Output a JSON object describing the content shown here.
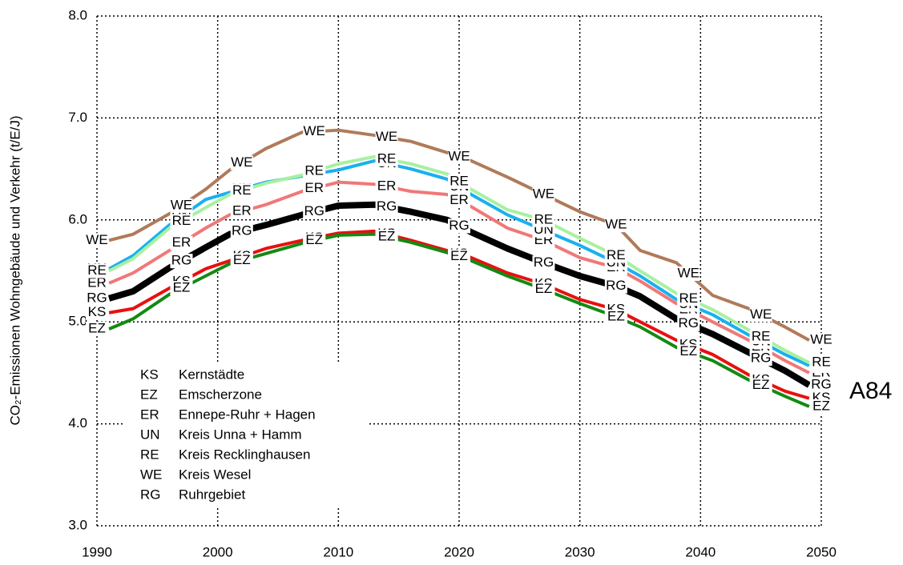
{
  "chart_data": {
    "type": "line",
    "ylabel": "CO₂-Emissionen Wohngebäude und Verkehr (t/E/J)",
    "annotation": "A84",
    "x": [
      1991,
      1993,
      1996,
      1999,
      2001,
      2004,
      2007,
      2010,
      2013,
      2016,
      2019,
      2021,
      2024,
      2027,
      2030,
      2033,
      2035,
      2038,
      2041,
      2044,
      2047,
      2049
    ],
    "series": [
      {
        "name": "KS",
        "full_name": "Kernstädte",
        "color": "#e81010",
        "line_width": 4,
        "values": [
          5.09,
          5.13,
          5.33,
          5.52,
          5.6,
          5.72,
          5.8,
          5.87,
          5.89,
          5.8,
          5.7,
          5.63,
          5.48,
          5.37,
          5.22,
          5.12,
          5.0,
          4.82,
          4.68,
          4.48,
          4.32,
          4.25
        ]
      },
      {
        "name": "EZ",
        "full_name": "Emscherzone",
        "color": "#138a13",
        "line_width": 4,
        "values": [
          4.93,
          5.03,
          5.27,
          5.45,
          5.57,
          5.67,
          5.77,
          5.85,
          5.86,
          5.78,
          5.68,
          5.6,
          5.45,
          5.32,
          5.18,
          5.05,
          4.95,
          4.75,
          4.62,
          4.43,
          4.27,
          4.17
        ]
      },
      {
        "name": "ER",
        "full_name": "Ennepe-Ruhr + Hagen",
        "color": "#f07878",
        "line_width": 4,
        "values": [
          5.38,
          5.48,
          5.7,
          5.92,
          6.05,
          6.15,
          6.28,
          6.37,
          6.35,
          6.28,
          6.25,
          6.13,
          5.92,
          5.8,
          5.63,
          5.53,
          5.4,
          5.18,
          5.0,
          4.82,
          4.62,
          4.5
        ]
      },
      {
        "name": "UN",
        "full_name": "Kreis Unna + Hamm",
        "color": "#1ab0f0",
        "line_width": 4,
        "values": [
          5.52,
          5.65,
          5.95,
          6.2,
          6.27,
          6.37,
          6.43,
          6.49,
          6.58,
          6.5,
          6.4,
          6.25,
          6.05,
          5.9,
          5.75,
          5.58,
          5.45,
          5.22,
          5.07,
          4.87,
          4.68,
          4.57
        ]
      },
      {
        "name": "RE",
        "full_name": "Kreis Recklinghausen",
        "color": "#a8f0a0",
        "line_width": 4,
        "values": [
          5.5,
          5.62,
          5.92,
          6.12,
          6.25,
          6.36,
          6.44,
          6.55,
          6.62,
          6.55,
          6.45,
          6.3,
          6.1,
          6.0,
          5.82,
          5.65,
          5.5,
          5.28,
          5.12,
          4.92,
          4.72,
          4.6
        ]
      },
      {
        "name": "WE",
        "full_name": "Kreis Wesel",
        "color": "#b07a5a",
        "line_width": 4,
        "values": [
          5.8,
          5.86,
          6.06,
          6.3,
          6.49,
          6.7,
          6.86,
          6.88,
          6.83,
          6.77,
          6.66,
          6.58,
          6.42,
          6.25,
          6.08,
          5.95,
          5.7,
          5.58,
          5.26,
          5.13,
          4.95,
          4.82
        ]
      },
      {
        "name": "RG",
        "full_name": "Ruhrgebiet",
        "color": "#000000",
        "line_width": 8,
        "values": [
          5.23,
          5.3,
          5.53,
          5.73,
          5.86,
          5.95,
          6.05,
          6.14,
          6.15,
          6.08,
          6.0,
          5.88,
          5.72,
          5.58,
          5.45,
          5.35,
          5.25,
          5.03,
          4.88,
          4.7,
          4.52,
          4.38
        ]
      }
    ],
    "xlim": [
      1990,
      2050
    ],
    "ylim": [
      3,
      8
    ],
    "xticks": [
      1990,
      2000,
      2010,
      2020,
      2030,
      2040,
      2050
    ],
    "yticks": [
      {
        "value": 3,
        "label": "3.0"
      },
      {
        "value": 4,
        "label": "4.0"
      },
      {
        "value": 5,
        "label": "5.0"
      },
      {
        "value": 6,
        "label": "6.0"
      },
      {
        "value": 7,
        "label": "7.0"
      },
      {
        "value": 8,
        "label": "8.0"
      }
    ],
    "grid": true
  }
}
